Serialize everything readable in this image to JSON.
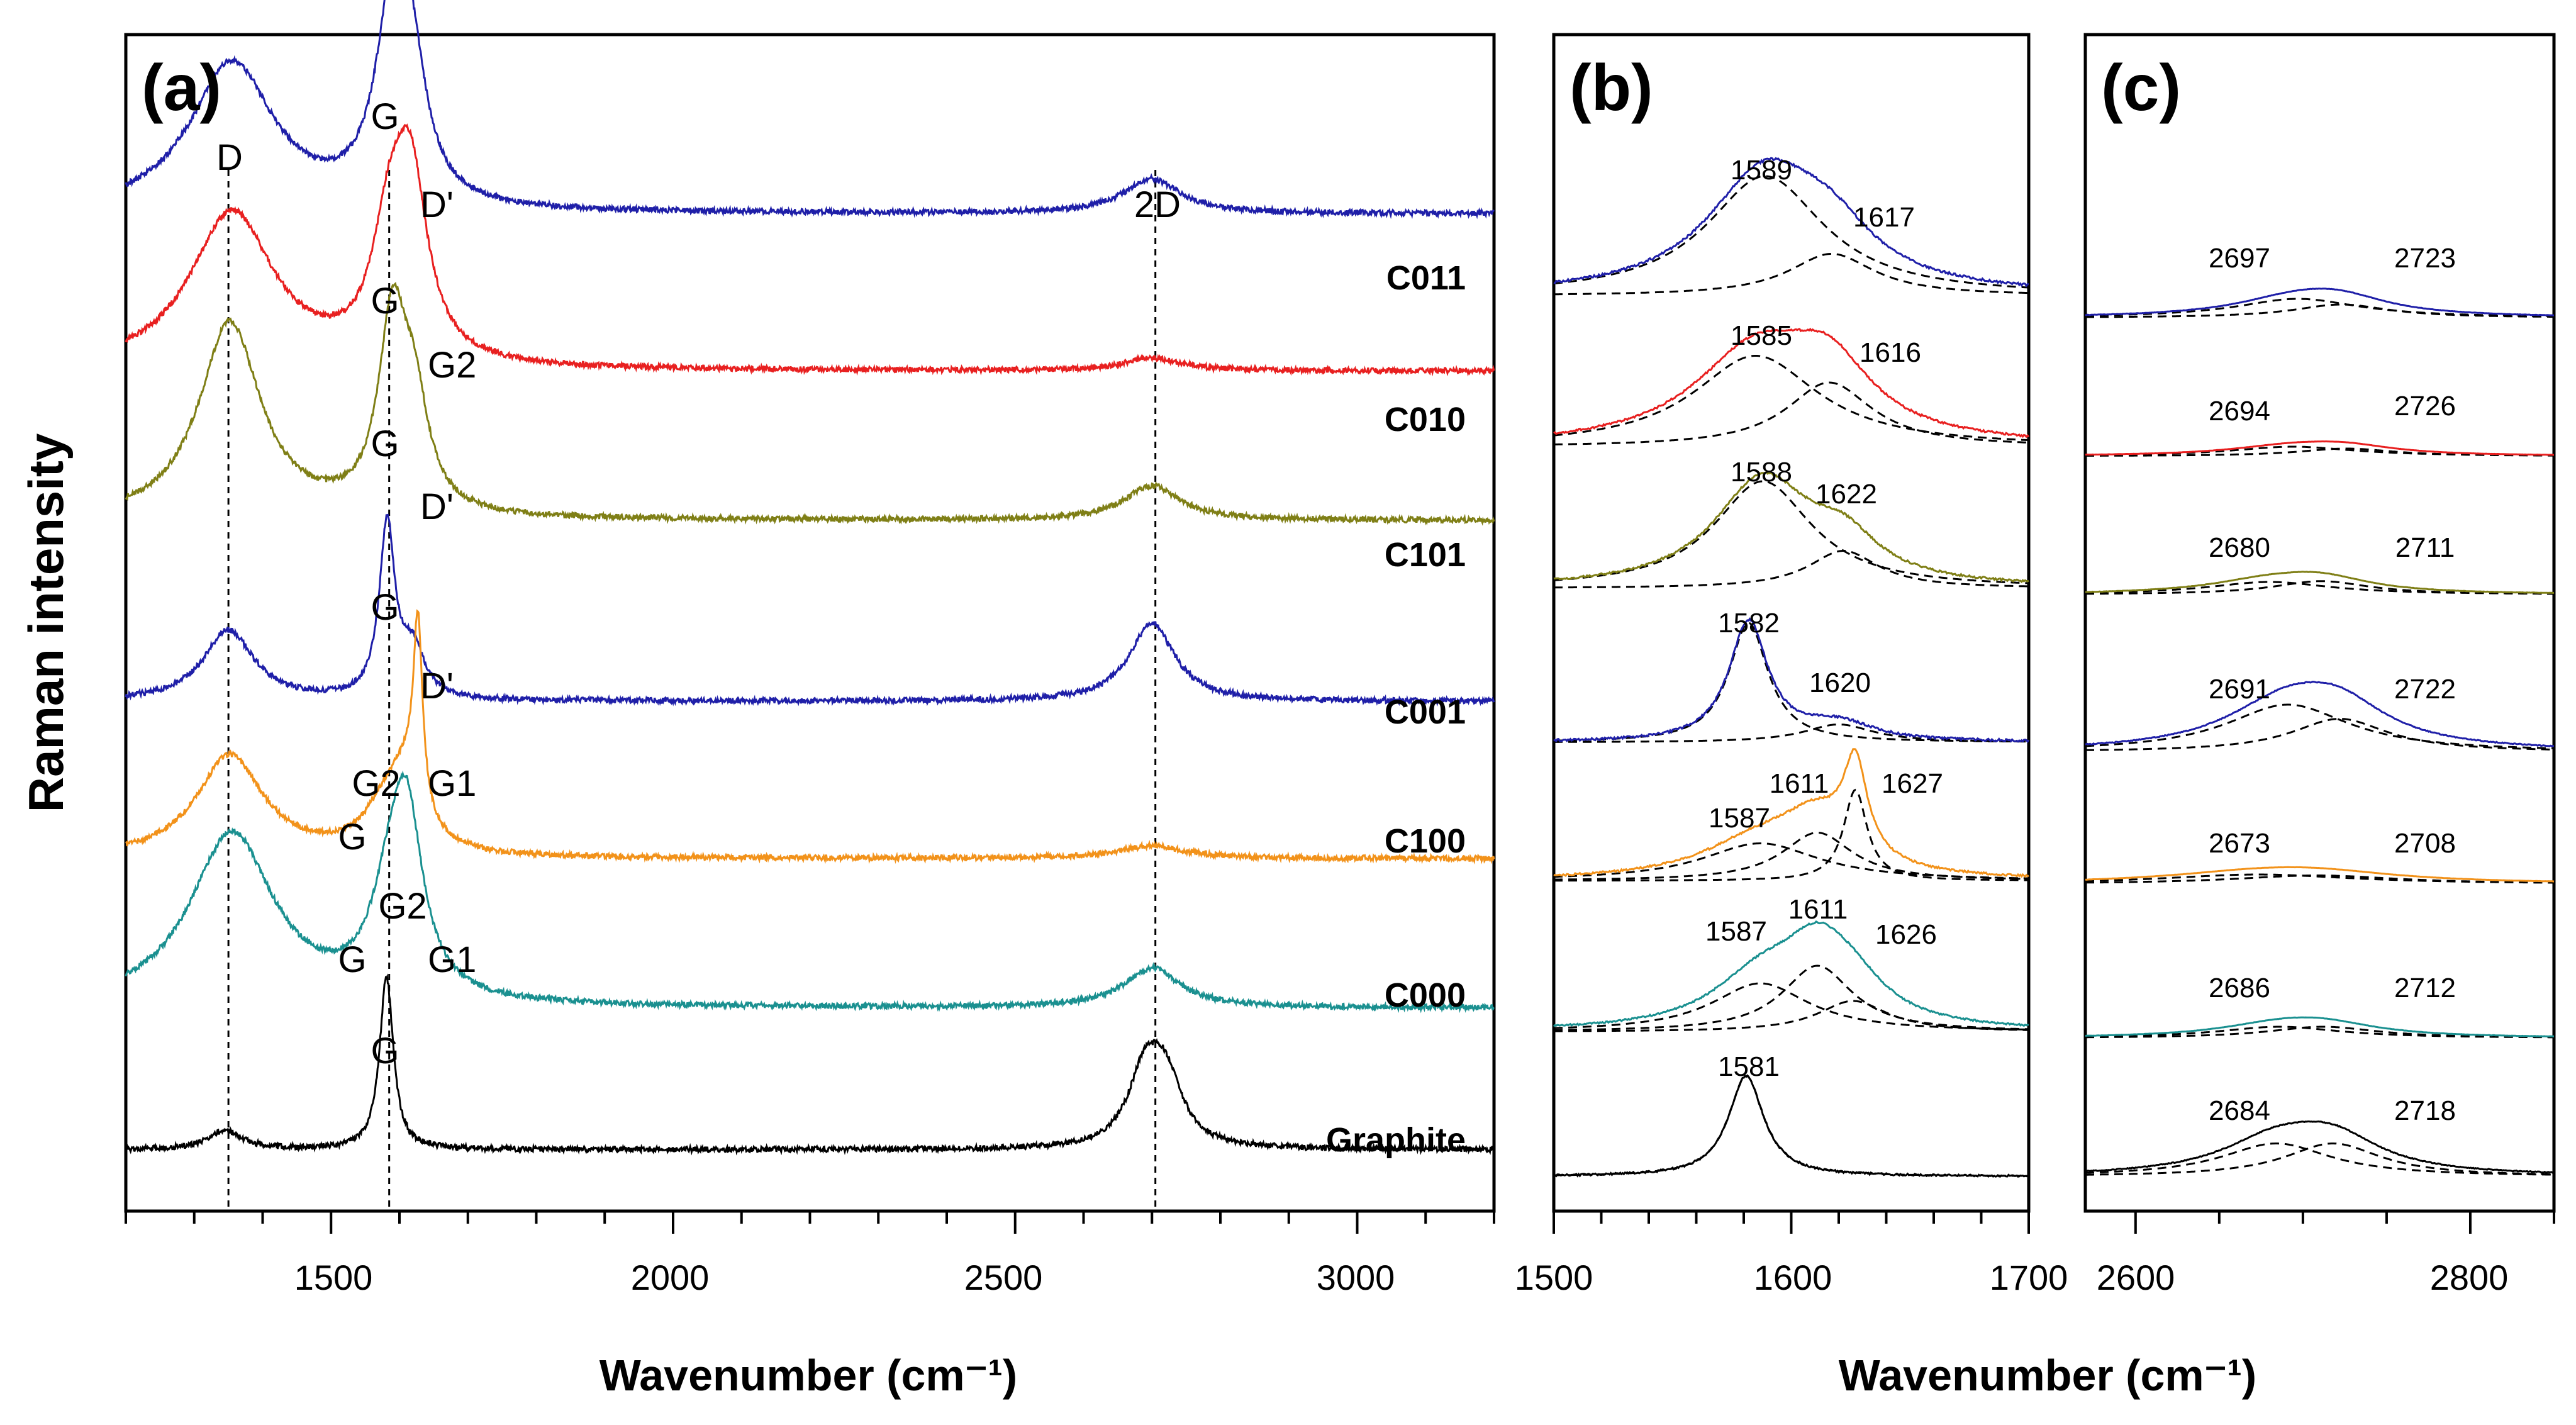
{
  "figure": {
    "ylabel": "Raman intensity",
    "xlabel": "Wavenumber (cm⁻¹)"
  },
  "chart_data": [
    {
      "panel": "(a)",
      "type": "line",
      "xlim": [
        1200,
        3200
      ],
      "xticks": [
        1500,
        2000,
        2500,
        3000
      ],
      "tick_labels": [
        "1500",
        "2000",
        "2500",
        "3000"
      ],
      "xlabel": "Wavenumber (cm⁻¹)",
      "ylabel": "Raman intensity",
      "reference_lines": [
        1350,
        1585,
        2705
      ],
      "series": [
        {
          "name": "C011",
          "color": "#1f1fa8",
          "baseline": 6.2,
          "peaks": [
            {
              "x": 1355,
              "height": 0.95,
              "width": 75
            },
            {
              "x": 1592,
              "height": 1.35,
              "width": 30
            },
            {
              "x": 1620,
              "height": 0.55,
              "width": 25
            },
            {
              "x": 2700,
              "height": 0.22,
              "width": 50
            }
          ]
        },
        {
          "name": "C010",
          "color": "#e82020",
          "baseline": 5.2,
          "peaks": [
            {
              "x": 1355,
              "height": 1.0,
              "width": 75
            },
            {
              "x": 1585,
              "height": 0.7,
              "width": 30
            },
            {
              "x": 1616,
              "height": 1.1,
              "width": 30
            },
            {
              "x": 2700,
              "height": 0.08,
              "width": 50
            }
          ]
        },
        {
          "name": "C101",
          "color": "#7f7f16",
          "baseline": 4.25,
          "peaks": [
            {
              "x": 1352,
              "height": 1.25,
              "width": 55
            },
            {
              "x": 1590,
              "height": 1.2,
              "width": 25
            },
            {
              "x": 1622,
              "height": 0.6,
              "width": 25
            },
            {
              "x": 2700,
              "height": 0.22,
              "width": 50
            }
          ]
        },
        {
          "name": "C001",
          "color": "#1f1fa8",
          "baseline": 3.1,
          "peaks": [
            {
              "x": 1350,
              "height": 0.45,
              "width": 45
            },
            {
              "x": 1582,
              "height": 1.1,
              "width": 14
            },
            {
              "x": 1620,
              "height": 0.3,
              "width": 20
            },
            {
              "x": 2700,
              "height": 0.5,
              "width": 40
            }
          ]
        },
        {
          "name": "C100",
          "color": "#f2921a",
          "baseline": 2.1,
          "peaks": [
            {
              "x": 1352,
              "height": 0.65,
              "width": 60
            },
            {
              "x": 1580,
              "height": 0.25,
              "width": 40
            },
            {
              "x": 1610,
              "height": 0.4,
              "width": 30
            },
            {
              "x": 1627,
              "height": 1.15,
              "width": 8
            },
            {
              "x": 2700,
              "height": 0.08,
              "width": 60
            }
          ]
        },
        {
          "name": "C000",
          "color": "#1a9090",
          "baseline": 1.15,
          "peaks": [
            {
              "x": 1355,
              "height": 1.1,
              "width": 75
            },
            {
              "x": 1587,
              "height": 0.55,
              "width": 35
            },
            {
              "x": 1611,
              "height": 1.0,
              "width": 28
            },
            {
              "x": 2700,
              "height": 0.25,
              "width": 50
            }
          ]
        },
        {
          "name": "Graphite",
          "color": "#000000",
          "baseline": 0.25,
          "peaks": [
            {
              "x": 1345,
              "height": 0.12,
              "width": 30
            },
            {
              "x": 1581,
              "height": 1.1,
              "width": 12
            },
            {
              "x": 2690,
              "height": 0.45,
              "width": 30
            },
            {
              "x": 2720,
              "height": 0.4,
              "width": 30
            }
          ]
        }
      ],
      "sample_labels": [
        "C011",
        "C010",
        "C101",
        "C001",
        "C100",
        "C000",
        "Graphite"
      ],
      "peak_annotations": {
        "C011": [
          "D",
          "G",
          "D'",
          "2D"
        ],
        "C010": [
          "G",
          "G2"
        ],
        "C101": [
          "G",
          "D'"
        ],
        "C001": [
          "G",
          "D'"
        ],
        "C100": [
          "G2",
          "G1",
          "G"
        ],
        "C000": [
          "G2",
          "G",
          "G1"
        ],
        "Graphite": [
          "G"
        ]
      }
    },
    {
      "panel": "(b)",
      "type": "line",
      "xlim": [
        1500,
        1700
      ],
      "xticks": [
        1500,
        1600,
        1700
      ],
      "tick_labels": [
        "1500",
        "1600",
        "1700"
      ],
      "fits": [
        {
          "sample": "C011",
          "color": "#1f1fa8",
          "components": [
            1589,
            1617
          ],
          "labels": [
            "1589",
            "1617"
          ]
        },
        {
          "sample": "C010",
          "color": "#e82020",
          "components": [
            1585,
            1616
          ],
          "labels": [
            "1585",
            "1616"
          ]
        },
        {
          "sample": "C101",
          "color": "#7f7f16",
          "components": [
            1588,
            1622
          ],
          "labels": [
            "1588",
            "1622"
          ]
        },
        {
          "sample": "C001",
          "color": "#1f1fa8",
          "components": [
            1582,
            1620
          ],
          "labels": [
            "1582",
            "1620"
          ]
        },
        {
          "sample": "C100",
          "color": "#f2921a",
          "components": [
            1587,
            1611,
            1627
          ],
          "labels": [
            "1587",
            "1611",
            "1627"
          ]
        },
        {
          "sample": "C000",
          "color": "#1a9090",
          "components": [
            1587,
            1611,
            1626
          ],
          "labels": [
            "1587",
            "1611",
            "1626"
          ]
        },
        {
          "sample": "Graphite",
          "color": "#000000",
          "components": [
            1581
          ],
          "labels": [
            "1581"
          ]
        }
      ]
    },
    {
      "panel": "(c)",
      "type": "line",
      "xlim": [
        2570,
        2850
      ],
      "xticks": [
        2600,
        2800
      ],
      "tick_labels": [
        "2600",
        "2800"
      ],
      "fits": [
        {
          "sample": "C011",
          "color": "#1f1fa8",
          "components": [
            2697,
            2723
          ],
          "labels": [
            "2697",
            "2723"
          ]
        },
        {
          "sample": "C010",
          "color": "#e82020",
          "components": [
            2694,
            2726
          ],
          "labels": [
            "2694",
            "2726"
          ]
        },
        {
          "sample": "C101",
          "color": "#7f7f16",
          "components": [
            2680,
            2711
          ],
          "labels": [
            "2680",
            "2711"
          ]
        },
        {
          "sample": "C001",
          "color": "#1f1fa8",
          "components": [
            2691,
            2722
          ],
          "labels": [
            "2691",
            "2722"
          ]
        },
        {
          "sample": "C100",
          "color": "#f2921a",
          "components": [
            2673,
            2708
          ],
          "labels": [
            "2673",
            "2708"
          ]
        },
        {
          "sample": "C000",
          "color": "#1a9090",
          "components": [
            2686,
            2712
          ],
          "labels": [
            "2686",
            "2712"
          ]
        },
        {
          "sample": "Graphite",
          "color": "#000000",
          "components": [
            2684,
            2718
          ],
          "labels": [
            "2684",
            "2718"
          ]
        }
      ]
    }
  ]
}
